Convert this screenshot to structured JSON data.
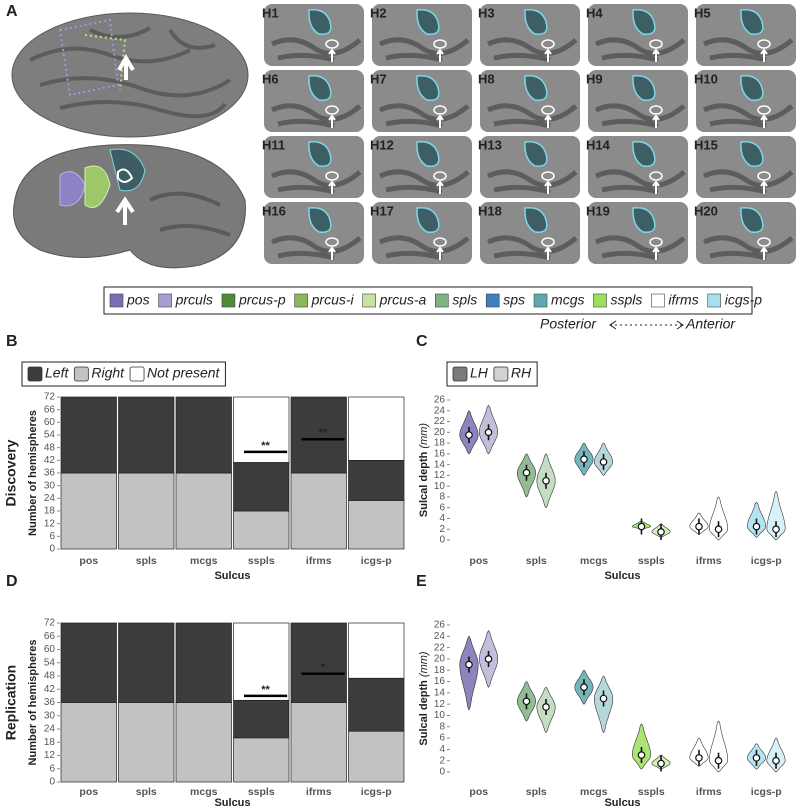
{
  "panel_labels": [
    "A",
    "B",
    "C",
    "D",
    "E"
  ],
  "hemisphere_labels": [
    "H1",
    "H2",
    "H3",
    "H4",
    "H5",
    "H6",
    "H7",
    "H8",
    "H9",
    "H10",
    "H11",
    "H12",
    "H13",
    "H14",
    "H15",
    "H16",
    "H17",
    "H18",
    "H19",
    "H20"
  ],
  "sulcus_legend": [
    {
      "name": "pos",
      "color": "#7a6fb0"
    },
    {
      "name": "prculs",
      "color": "#a79fd0"
    },
    {
      "name": "prcus-p",
      "color": "#4e8a3a"
    },
    {
      "name": "prcus-i",
      "color": "#8cb85a"
    },
    {
      "name": "prcus-a",
      "color": "#c6e3a0"
    },
    {
      "name": "spls",
      "color": "#7fb27f"
    },
    {
      "name": "sps",
      "color": "#3f7fbf"
    },
    {
      "name": "mcgs",
      "color": "#5fa8b0"
    },
    {
      "name": "sspls",
      "color": "#9be05a"
    },
    {
      "name": "ifrms",
      "color": "#ffffff"
    },
    {
      "name": "icgs-p",
      "color": "#a8dff0"
    }
  ],
  "axis_direction": {
    "left": "Posterior",
    "right": "Anterior"
  },
  "chart_data": [
    {
      "type": "stacked_bar",
      "row_label": "Discovery",
      "xlabel": "Sulcus",
      "ylabel": "Number of hemispheres",
      "categories": [
        "pos",
        "spls",
        "mcgs",
        "sspls",
        "ifrms",
        "icgs-p"
      ],
      "series": [
        {
          "name": "Left",
          "color": "#3c3c3c",
          "values": [
            36,
            36,
            36,
            23,
            36,
            19
          ]
        },
        {
          "name": "Right",
          "color": "#c2c2c2",
          "values": [
            36,
            36,
            36,
            18,
            36,
            23
          ]
        },
        {
          "name": "Not present",
          "color": "#ffffff",
          "values": [
            0,
            0,
            0,
            31,
            0,
            30
          ]
        }
      ],
      "ylim": [
        0,
        72
      ],
      "yticks": [
        0,
        6,
        12,
        18,
        24,
        30,
        36,
        42,
        48,
        54,
        60,
        66,
        72
      ],
      "annotations": [
        {
          "from": "sspls",
          "to": "ifrms",
          "y": 46,
          "label": "**"
        },
        {
          "from": "ifrms",
          "to": "icgs-p",
          "y": 52,
          "label": "**"
        }
      ]
    },
    {
      "type": "violin",
      "xlabel": "Sulcus",
      "ylabel": "Sulcal depth",
      "ylabel_unit": "(mm)",
      "categories": [
        "pos",
        "spls",
        "mcgs",
        "sspls",
        "ifrms",
        "icgs-p"
      ],
      "category_colors": [
        "#7a6fb0",
        "#7fb27f",
        "#5fa8b0",
        "#9be05a",
        "#ffffff",
        "#a8dff0"
      ],
      "series": [
        {
          "name": "LH",
          "color": "#7a7a7a",
          "values": [
            19.5,
            12.5,
            15,
            2.5,
            2.5,
            2.5
          ],
          "min": [
            16,
            8,
            12,
            2,
            1,
            0.5
          ],
          "max": [
            24,
            16,
            18,
            3.5,
            5,
            7
          ]
        },
        {
          "name": "RH",
          "color": "#d2d2d2",
          "values": [
            20,
            11,
            14.5,
            1.5,
            2,
            2
          ],
          "min": [
            16,
            6,
            12,
            0.5,
            0,
            0
          ],
          "max": [
            25,
            16,
            18,
            3,
            8,
            9
          ]
        }
      ],
      "ylim": [
        0,
        26
      ],
      "yticks": [
        0,
        2,
        4,
        6,
        8,
        10,
        12,
        14,
        16,
        18,
        20,
        22,
        24,
        26
      ]
    },
    {
      "type": "stacked_bar",
      "row_label": "Replication",
      "xlabel": "Sulcus",
      "ylabel": "Number of hemispheres",
      "categories": [
        "pos",
        "spls",
        "mcgs",
        "sspls",
        "ifrms",
        "icgs-p"
      ],
      "series": [
        {
          "name": "Left",
          "color": "#3c3c3c",
          "values": [
            36,
            36,
            36,
            17,
            36,
            24
          ]
        },
        {
          "name": "Right",
          "color": "#c2c2c2",
          "values": [
            36,
            36,
            36,
            20,
            36,
            23
          ]
        },
        {
          "name": "Not present",
          "color": "#ffffff",
          "values": [
            0,
            0,
            0,
            35,
            0,
            25
          ]
        }
      ],
      "ylim": [
        0,
        72
      ],
      "yticks": [
        0,
        6,
        12,
        18,
        24,
        30,
        36,
        42,
        48,
        54,
        60,
        66,
        72
      ],
      "annotations": [
        {
          "from": "sspls",
          "to": "ifrms",
          "y": 39,
          "label": "**"
        },
        {
          "from": "ifrms",
          "to": "icgs-p",
          "y": 49,
          "label": "*"
        }
      ]
    },
    {
      "type": "violin",
      "xlabel": "Sulcus",
      "ylabel": "Sulcal depth",
      "ylabel_unit": "(mm)",
      "categories": [
        "pos",
        "spls",
        "mcgs",
        "sspls",
        "ifrms",
        "icgs-p"
      ],
      "category_colors": [
        "#7a6fb0",
        "#7fb27f",
        "#5fa8b0",
        "#9be05a",
        "#ffffff",
        "#a8dff0"
      ],
      "series": [
        {
          "name": "LH",
          "color": "#7a7a7a",
          "values": [
            19,
            12.5,
            15,
            3,
            2.5,
            2.5
          ],
          "min": [
            11,
            9,
            12,
            0.5,
            1,
            0.5
          ],
          "max": [
            24,
            16,
            18,
            8.5,
            6,
            5
          ]
        },
        {
          "name": "RH",
          "color": "#d2d2d2",
          "values": [
            20,
            11.5,
            13,
            1.5,
            2,
            2
          ],
          "min": [
            15,
            7,
            7,
            0.5,
            0,
            0
          ],
          "max": [
            25,
            15,
            17,
            3,
            9,
            6
          ]
        }
      ],
      "ylim": [
        0,
        26
      ],
      "yticks": [
        0,
        2,
        4,
        6,
        8,
        10,
        12,
        14,
        16,
        18,
        20,
        22,
        24,
        26
      ]
    }
  ]
}
